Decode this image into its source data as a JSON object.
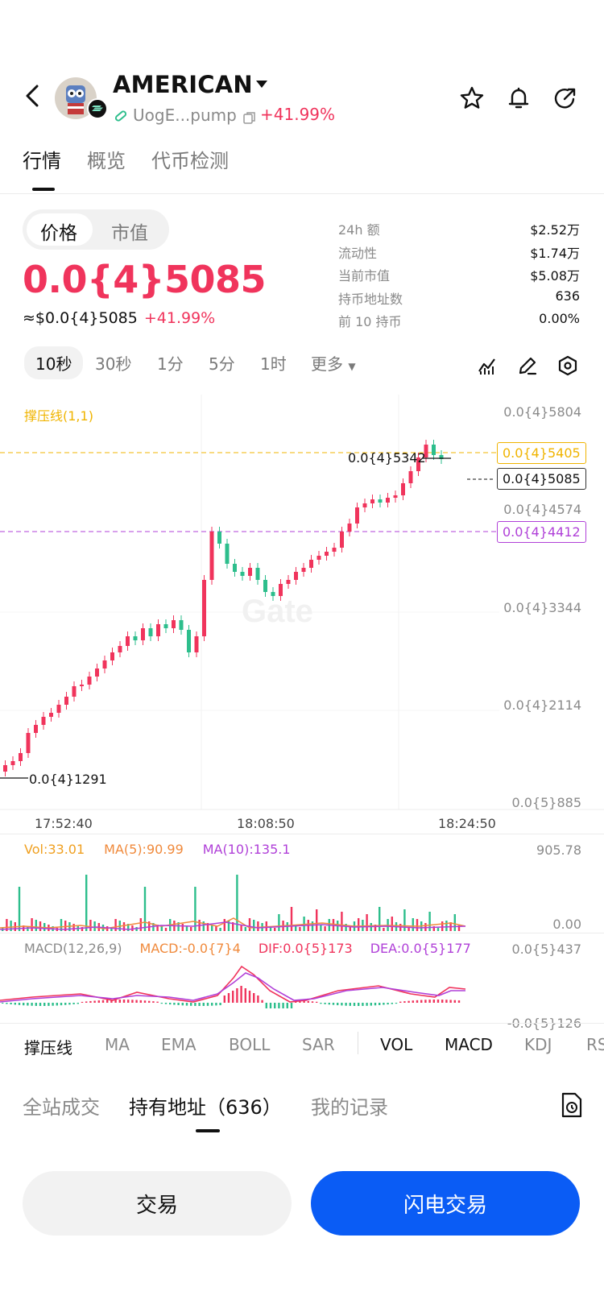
{
  "header": {
    "title": "AMERICAN",
    "address": "UogE...pump",
    "change": "+41.99%",
    "icons": [
      "back-icon",
      "star-icon",
      "bell-icon",
      "share-icon",
      "copy-icon",
      "pill-icon"
    ]
  },
  "tabs": [
    "行情",
    "概览",
    "代币检测"
  ],
  "price_toggle": [
    "价格",
    "市值"
  ],
  "price": {
    "main": "0.0{4}5085",
    "usd": "≈$0.0{4}5085",
    "change": "+41.99%"
  },
  "stats": [
    {
      "k": "24h 额",
      "v": "$2.52万"
    },
    {
      "k": "流动性",
      "v": "$1.74万"
    },
    {
      "k": "当前市值",
      "v": "$5.08万"
    },
    {
      "k": "持币地址数",
      "v": "636"
    },
    {
      "k": "前 10 持币",
      "v": "0.00%"
    }
  ],
  "timeframes": [
    "10秒",
    "30秒",
    "1分",
    "5分",
    "1时",
    "更多"
  ],
  "chart": {
    "indicator_label": "撑压线(1,1)",
    "y_labels": [
      "0.0{4}5804",
      "0.0{4}4574",
      "0.0{4}3344",
      "0.0{4}2114",
      "0.0{5}885"
    ],
    "resistance": "0.0{4}5405",
    "current": "0.0{4}5085",
    "support": "0.0{4}4412",
    "high_marker": "0.0{4}5342",
    "low_marker": "0.0{4}1291",
    "x_labels": [
      "17:52:40",
      "18:08:50",
      "18:24:50"
    ],
    "watermark": "Gate"
  },
  "volume": {
    "vol": "Vol:33.01",
    "ma5": "MA(5):90.99",
    "ma10": "MA(10):135.1",
    "top": "905.78",
    "bottom": "0.00"
  },
  "macd": {
    "label": "MACD(12,26,9)",
    "macd": "MACD:-0.0{7}4",
    "dif": "DIF:0.0{5}173",
    "dea": "DEA:0.0{5}177",
    "top": "0.0{5}437",
    "bottom": "-0.0{5}126"
  },
  "indicators": [
    "撑压线",
    "MA",
    "EMA",
    "BOLL",
    "SAR",
    "VOL",
    "MACD",
    "KDJ",
    "RS"
  ],
  "bottom_tabs": [
    "全站成交",
    "持有地址（636）",
    "我的记录"
  ],
  "buttons": {
    "trade": "交易",
    "flash": "闪电交易"
  },
  "colors": {
    "up": "#f0345c",
    "down": "#2dbe8c",
    "resist": "#f0b400",
    "support": "#b040d8",
    "accent": "#0a5cf5"
  }
}
